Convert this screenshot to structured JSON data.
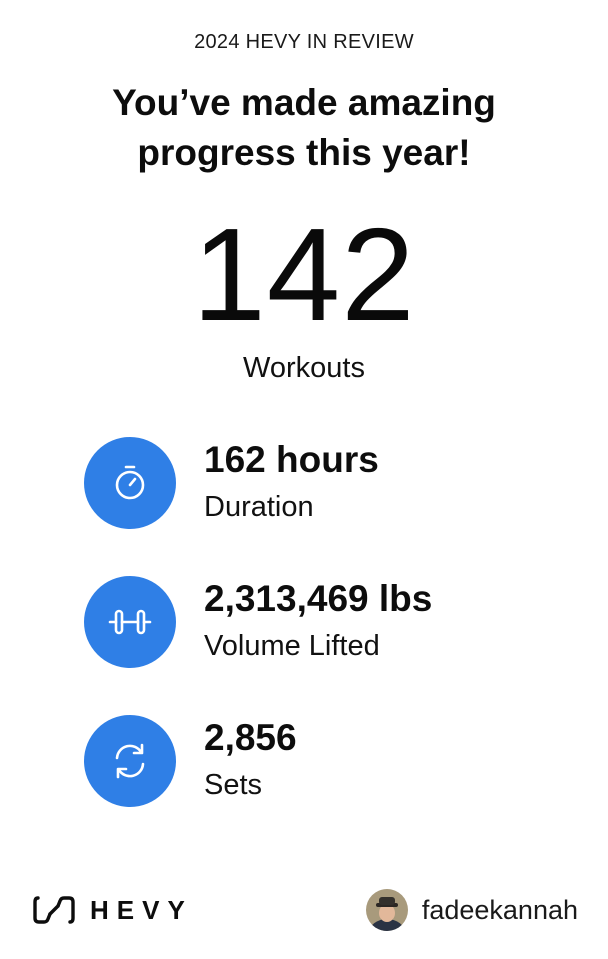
{
  "header": {
    "eyebrow": "2024 HEVY IN REVIEW",
    "headline": "You’ve made amazing progress this year!"
  },
  "hero": {
    "value": "142",
    "label": "Workouts"
  },
  "stats": [
    {
      "value": "162 hours",
      "label": "Duration",
      "icon": "stopwatch-icon"
    },
    {
      "value": "2,313,469 lbs",
      "label": "Volume Lifted",
      "icon": "dumbbell-icon"
    },
    {
      "value": "2,856",
      "label": "Sets",
      "icon": "refresh-icon"
    }
  ],
  "footer": {
    "logo_text": "HEVY",
    "username": "fadeekannah"
  },
  "colors": {
    "accent": "#2f7fe6",
    "text": "#0d0d0d",
    "background": "#ffffff"
  }
}
